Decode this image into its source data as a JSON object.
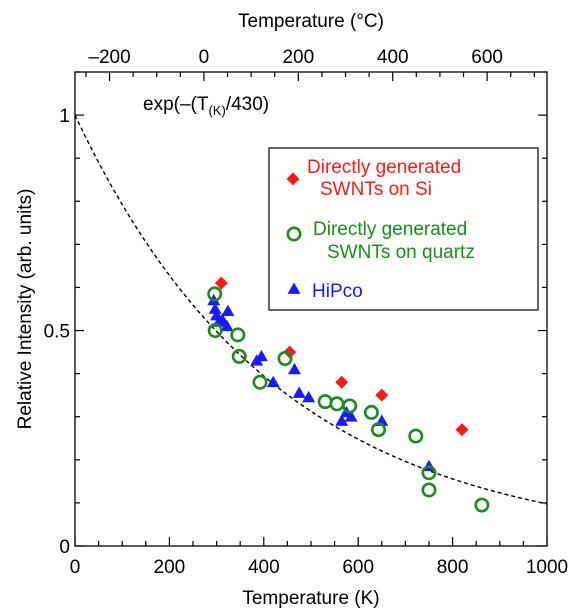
{
  "chart_data": {
    "type": "scatter",
    "xlabel": "Temperature (K)",
    "ylabel": "Relative Intensity (arb. units)",
    "top_xlabel": "Temperature (°C)",
    "xlim": [
      0,
      1000
    ],
    "ylim": [
      0,
      1.1
    ],
    "x_ticks": [
      0,
      200,
      400,
      600,
      800,
      1000
    ],
    "x_tick_labels": [
      "0",
      "200",
      "400",
      "600",
      "800",
      "1000"
    ],
    "y_ticks": [
      0,
      0.5,
      1
    ],
    "y_tick_labels": [
      "0",
      "0.5",
      "1"
    ],
    "top_ticks": [
      -200,
      0,
      200,
      400,
      600
    ],
    "top_tick_labels": [
      "–200",
      "0",
      "200",
      "400",
      "600"
    ],
    "grid": false,
    "legend_position": "upper-right",
    "annotation": {
      "prefix": "exp(–(T",
      "subscript": "(K)",
      "suffix": "/430)"
    },
    "fit_curve": {
      "style": "dashed",
      "color": "#000000",
      "formula": "exp(-T/430)"
    },
    "series": [
      {
        "name_lines": [
          "Directly generated",
          "SWNTs on Si"
        ],
        "marker": "diamond",
        "color": "#ff1a1a",
        "points": [
          [
            310,
            0.61
          ],
          [
            455,
            0.45
          ],
          [
            565,
            0.38
          ],
          [
            650,
            0.35
          ],
          [
            820,
            0.27
          ]
        ]
      },
      {
        "name_lines": [
          "Directly generated",
          "SWNTs on quartz"
        ],
        "marker": "open-circle",
        "color": "#1a8c1a",
        "points": [
          [
            296,
            0.585
          ],
          [
            297,
            0.5
          ],
          [
            345,
            0.49
          ],
          [
            348,
            0.44
          ],
          [
            392,
            0.38
          ],
          [
            445,
            0.435
          ],
          [
            530,
            0.335
          ],
          [
            555,
            0.33
          ],
          [
            582,
            0.325
          ],
          [
            628,
            0.31
          ],
          [
            643,
            0.27
          ],
          [
            722,
            0.255
          ],
          [
            750,
            0.17
          ],
          [
            750,
            0.13
          ],
          [
            862,
            0.095
          ]
        ]
      },
      {
        "name": "HiPco",
        "marker": "triangle",
        "color": "#1a1aff",
        "points": [
          [
            294,
            0.57
          ],
          [
            297,
            0.55
          ],
          [
            300,
            0.535
          ],
          [
            305,
            0.52
          ],
          [
            312,
            0.525
          ],
          [
            322,
            0.51
          ],
          [
            324,
            0.545
          ],
          [
            385,
            0.43
          ],
          [
            395,
            0.44
          ],
          [
            420,
            0.38
          ],
          [
            465,
            0.41
          ],
          [
            475,
            0.355
          ],
          [
            495,
            0.345
          ],
          [
            565,
            0.29
          ],
          [
            575,
            0.31
          ],
          [
            585,
            0.3
          ],
          [
            650,
            0.29
          ],
          [
            750,
            0.185
          ]
        ]
      }
    ]
  }
}
